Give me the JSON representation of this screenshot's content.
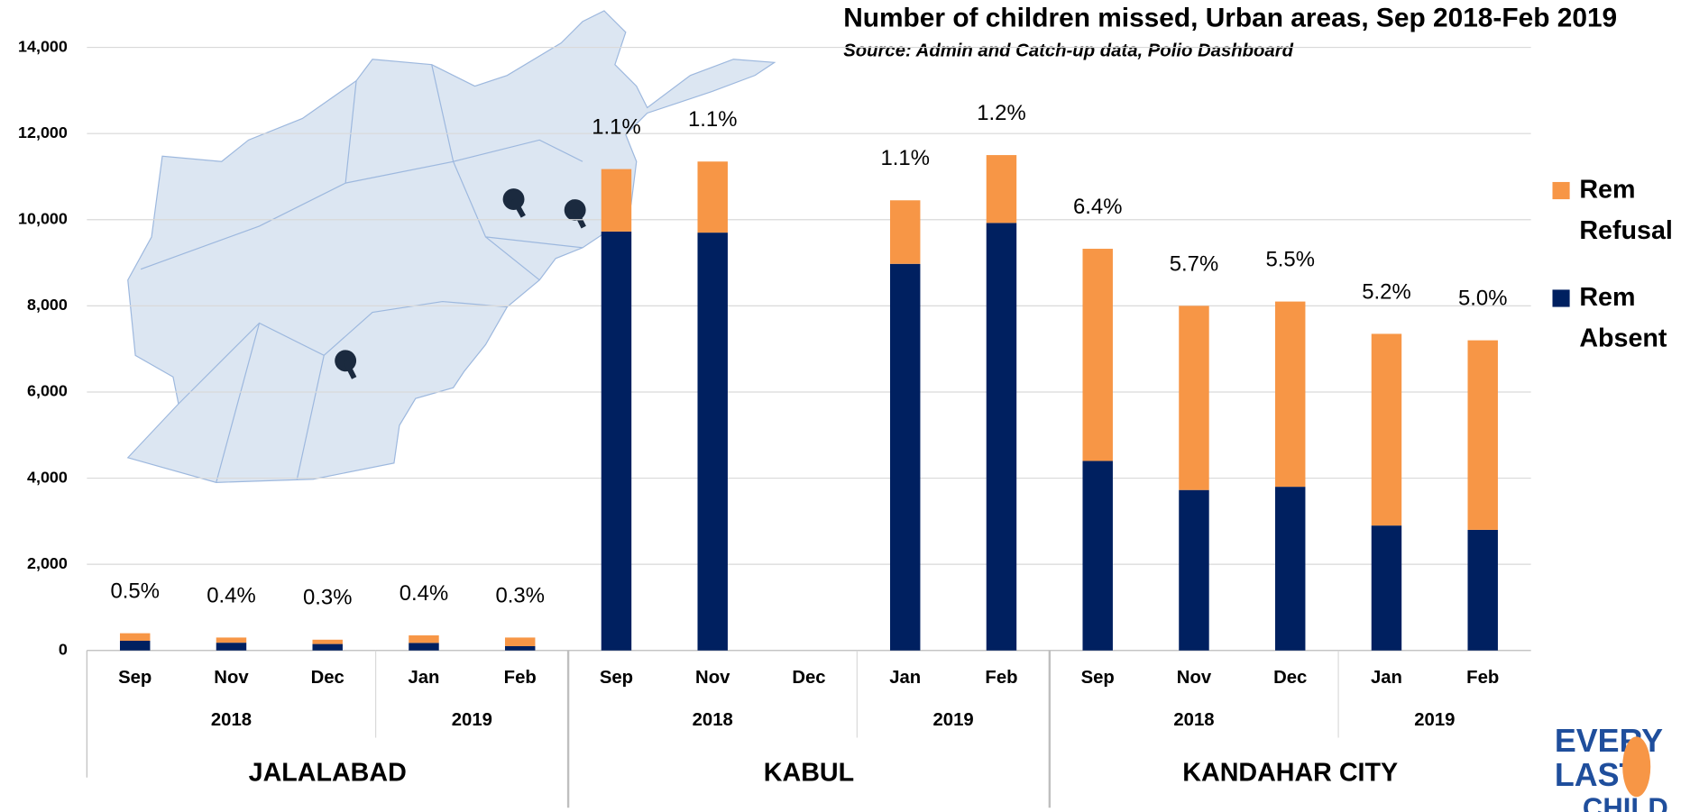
{
  "chart_data": {
    "type": "stacked-bar",
    "title": "Number of children missed, Urban areas, Sep 2018-Feb 2019",
    "subtitle": "Source: Admin and Catch-up data, Polio Dashboard",
    "cities": [
      {
        "name": "JALALABAD",
        "years": [
          {
            "label": "2018",
            "months": [
              "Sep",
              "Nov",
              "Dec"
            ]
          },
          {
            "label": "2019",
            "months": [
              "Jan",
              "Feb"
            ]
          }
        ]
      },
      {
        "name": "KABUL",
        "years": [
          {
            "label": "2018",
            "months": [
              "Sep",
              "Nov",
              "Dec"
            ]
          },
          {
            "label": "2019",
            "months": [
              "Jan",
              "Feb"
            ]
          }
        ]
      },
      {
        "name": "KANDAHAR CITY",
        "years": [
          {
            "label": "2018",
            "months": [
              "Sep",
              "Nov",
              "Dec"
            ]
          },
          {
            "label": "2019",
            "months": [
              "Jan",
              "Feb"
            ]
          }
        ]
      }
    ],
    "series": [
      {
        "name": "Rem Absent",
        "color": "#002060",
        "values": [
          225,
          180,
          150,
          175,
          100,
          9725,
          9700,
          null,
          8975,
          9925,
          4400,
          3725,
          3800,
          2900,
          2800
        ]
      },
      {
        "name": "Rem Refusal",
        "color": "#f79646",
        "values": [
          175,
          120,
          100,
          175,
          200,
          1450,
          1650,
          null,
          1475,
          1575,
          4925,
          4275,
          4300,
          4450,
          4400
        ]
      }
    ],
    "percent_labels": [
      "0.5%",
      "0.4%",
      "0.3%",
      "0.4%",
      "0.3%",
      "1.1%",
      "1.1%",
      null,
      "1.1%",
      "1.2%",
      "6.4%",
      "5.7%",
      "5.5%",
      "5.2%",
      "5.0%"
    ],
    "ylim": [
      0,
      14000
    ],
    "yticks": [
      {
        "value": 0,
        "label": "0"
      },
      {
        "value": 2000,
        "label": "2,000"
      },
      {
        "value": 4000,
        "label": "4,000"
      },
      {
        "value": 6000,
        "label": "6,000"
      },
      {
        "value": 8000,
        "label": "8,000"
      },
      {
        "value": 10000,
        "label": "10,000"
      },
      {
        "value": 12000,
        "label": "12,000"
      },
      {
        "value": 14000,
        "label": "14,000"
      }
    ],
    "grid": true,
    "legend_position": "right"
  },
  "logo": {
    "lines": [
      "EVERY",
      "LAST",
      "CHILD"
    ]
  }
}
